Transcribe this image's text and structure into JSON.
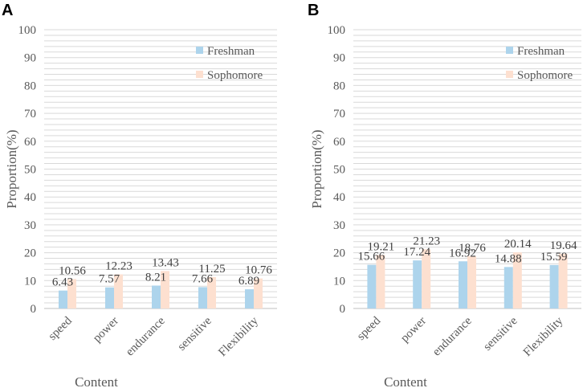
{
  "chart_data": [
    {
      "panel": "A",
      "type": "bar",
      "categories": [
        "speed",
        "power",
        "endurance",
        "sensitive",
        "Flexibility"
      ],
      "series": [
        {
          "name": "Freshman",
          "values": [
            6.43,
            7.57,
            8.21,
            7.66,
            6.89
          ],
          "color": "#add4ec"
        },
        {
          "name": "Sophomore",
          "values": [
            10.56,
            12.23,
            13.43,
            11.25,
            10.76
          ],
          "color": "#fde0d0"
        }
      ],
      "xlabel": "Content",
      "ylabel": "Proportion(%)",
      "ylim": [
        0,
        100
      ],
      "yticks": [
        0,
        10,
        20,
        30,
        40,
        50,
        60,
        70,
        80,
        90,
        100
      ],
      "legend": "top-right"
    },
    {
      "panel": "B",
      "type": "bar",
      "categories": [
        "speed",
        "power",
        "endurance",
        "sensitive",
        "Flexibility"
      ],
      "series": [
        {
          "name": "Freshman",
          "values": [
            15.66,
            17.24,
            16.92,
            14.88,
            15.59
          ],
          "color": "#add4ec"
        },
        {
          "name": "Sophomore",
          "values": [
            19.21,
            21.23,
            18.76,
            20.14,
            19.64
          ],
          "color": "#fde0d0"
        }
      ],
      "xlabel": "Content",
      "ylabel": "Proportion(%)",
      "ylim": [
        0,
        100
      ],
      "yticks": [
        0,
        10,
        20,
        30,
        40,
        50,
        60,
        70,
        80,
        90,
        100
      ],
      "legend": "top-right"
    }
  ]
}
